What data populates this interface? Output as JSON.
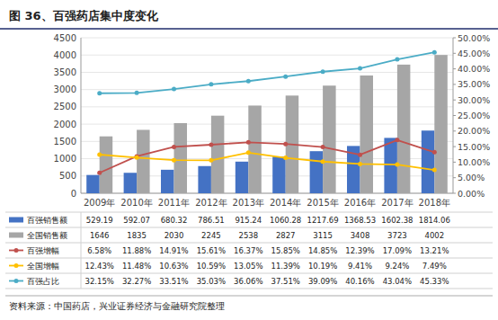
{
  "chart_data": {
    "type": "bar",
    "title": "图 36、百强药店集中度变化",
    "categories": [
      "2009年",
      "2010年",
      "2011年",
      "2012年",
      "2013年",
      "2014年",
      "2015年",
      "2016年",
      "2017年",
      "2018年"
    ],
    "series": [
      {
        "name": "百强销售额",
        "type": "bar",
        "color": "#4472C4",
        "values": [
          529.19,
          592.07,
          680.32,
          786.51,
          915.24,
          1060.28,
          1217.69,
          1368.53,
          1602.38,
          1814.06
        ],
        "value_labels": [
          "529.19",
          "592.07",
          "680.32",
          "786.51",
          "915.24",
          "1060.28",
          "1217.69",
          "1368.53",
          "1602.38",
          "1814.06"
        ]
      },
      {
        "name": "全国销售额",
        "type": "bar",
        "color": "#A6A6A6",
        "values": [
          1646,
          1835,
          2030,
          2245,
          2538,
          2827,
          3115,
          3408,
          3723,
          4002
        ],
        "value_labels": [
          "1646",
          "1835",
          "2030",
          "2245",
          "2538",
          "2827",
          "3115",
          "3408",
          "3723",
          "4002"
        ]
      },
      {
        "name": "百强增幅",
        "type": "line",
        "axis": "y2",
        "marker": "circle",
        "color": "#C0504D",
        "values": [
          6.58,
          11.88,
          14.91,
          15.61,
          16.37,
          15.85,
          14.85,
          12.39,
          17.09,
          13.21
        ],
        "value_labels": [
          "6.58%",
          "11.88%",
          "14.91%",
          "15.61%",
          "16.37%",
          "15.85%",
          "14.85%",
          "12.39%",
          "17.09%",
          "13.21%"
        ]
      },
      {
        "name": "全国增幅",
        "type": "line",
        "axis": "y2",
        "marker": "circle",
        "color": "#FFC000",
        "values": [
          12.43,
          11.48,
          10.63,
          10.59,
          13.05,
          11.39,
          10.19,
          9.41,
          9.24,
          7.49
        ],
        "value_labels": [
          "12.43%",
          "11.48%",
          "10.63%",
          "10.59%",
          "13.05%",
          "11.39%",
          "10.19%",
          "9.41%",
          "9.24%",
          "7.49%"
        ]
      },
      {
        "name": "百强占比",
        "type": "line",
        "axis": "y2",
        "marker": "circle",
        "color": "#4BACC6",
        "values": [
          32.15,
          32.27,
          33.51,
          35.03,
          36.06,
          37.51,
          39.09,
          40.16,
          43.04,
          45.33
        ],
        "value_labels": [
          "32.15%",
          "32.27%",
          "33.51%",
          "35.03%",
          "36.06%",
          "37.51%",
          "39.09%",
          "40.16%",
          "43.04%",
          "45.33%"
        ]
      }
    ],
    "ylim": [
      0,
      4500
    ],
    "yticks": [
      0,
      500,
      1000,
      1500,
      2000,
      2500,
      3000,
      3500,
      4000,
      4500
    ],
    "y2lim": [
      0,
      50
    ],
    "y2ticks": [
      {
        "value": 0,
        "label": "0.00%"
      },
      {
        "value": 5,
        "label": "5.00%"
      },
      {
        "value": 10,
        "label": "10.00%"
      },
      {
        "value": 15,
        "label": "15.00%"
      },
      {
        "value": 20,
        "label": "20.00%"
      },
      {
        "value": 25,
        "label": "25.00%"
      },
      {
        "value": 30,
        "label": "30.00%"
      },
      {
        "value": 35,
        "label": "35.00%"
      },
      {
        "value": 40,
        "label": "40.00%"
      },
      {
        "value": 45,
        "label": "45.00%"
      },
      {
        "value": 50,
        "label": "50.00%"
      }
    ],
    "grid": true,
    "legend": "bottom",
    "annotations": [
      "资料来源：中国药店，兴业证券经济与金融研究院整理"
    ]
  }
}
